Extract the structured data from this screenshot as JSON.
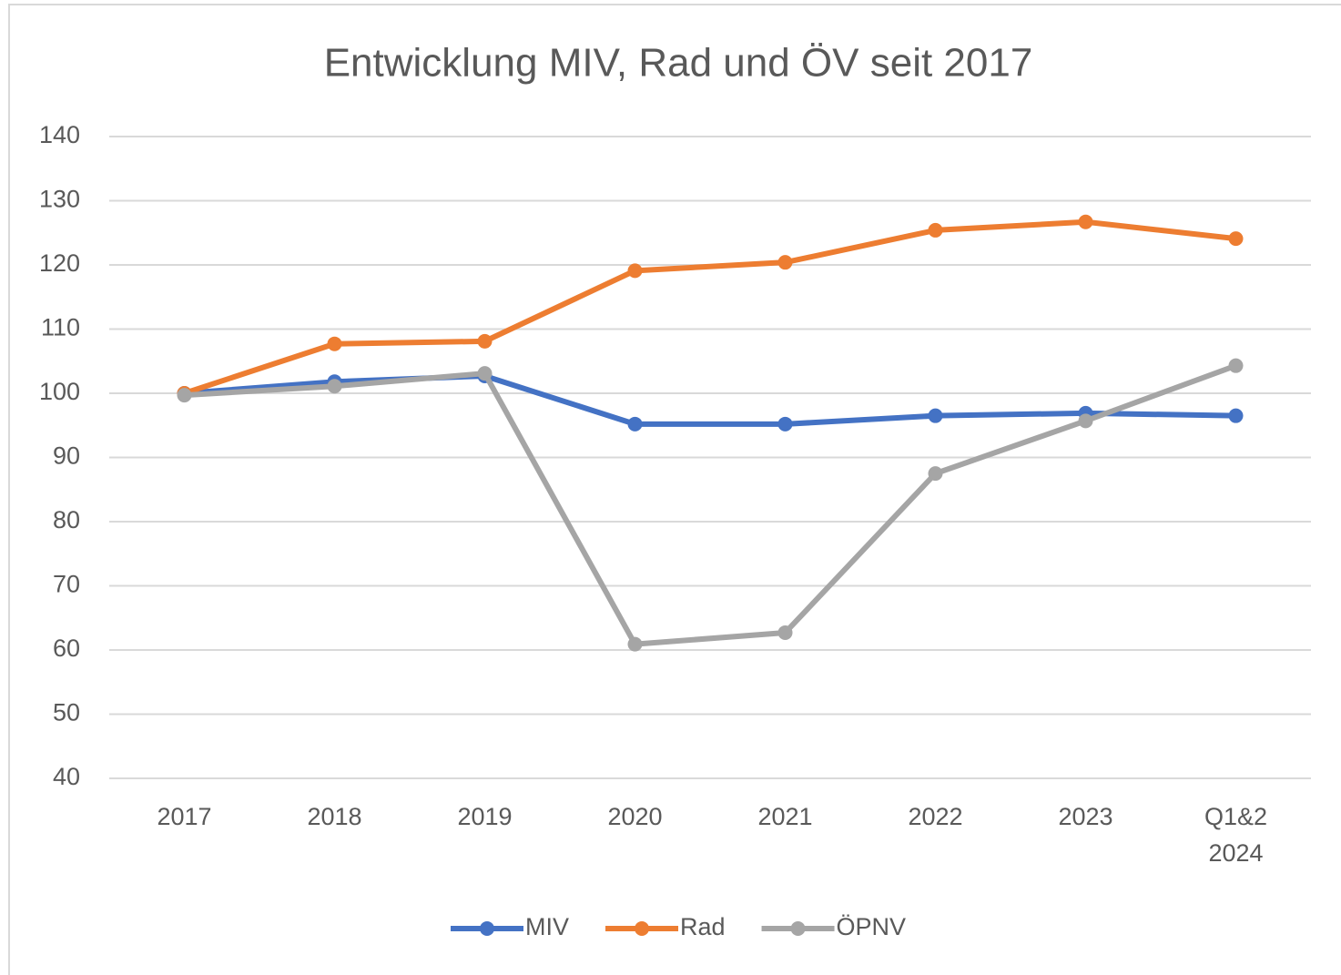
{
  "chart_data": {
    "type": "line",
    "title": "Entwicklung MIV, Rad und ÖV seit 2017",
    "categories": [
      "2017",
      "2018",
      "2019",
      "2020",
      "2021",
      "2022",
      "2023",
      "Q1&2 2024"
    ],
    "series": [
      {
        "name": "MIV",
        "color": "#4472c4",
        "values": [
          100,
          101.8,
          102.7,
          95.2,
          95.2,
          96.5,
          96.9,
          96.5
        ]
      },
      {
        "name": "Rad",
        "color": "#ed7d31",
        "values": [
          100,
          107.7,
          108.1,
          119.1,
          120.4,
          125.4,
          126.7,
          124.1
        ]
      },
      {
        "name": "ÖPNV",
        "color": "#a5a5a5",
        "values": [
          99.7,
          101.1,
          103.1,
          60.9,
          62.7,
          87.5,
          95.7,
          104.3
        ]
      }
    ],
    "ylim": [
      40,
      140
    ],
    "yticks": [
      40,
      50,
      60,
      70,
      80,
      90,
      100,
      110,
      120,
      130,
      140
    ],
    "grid": true,
    "legend": "bottom"
  }
}
